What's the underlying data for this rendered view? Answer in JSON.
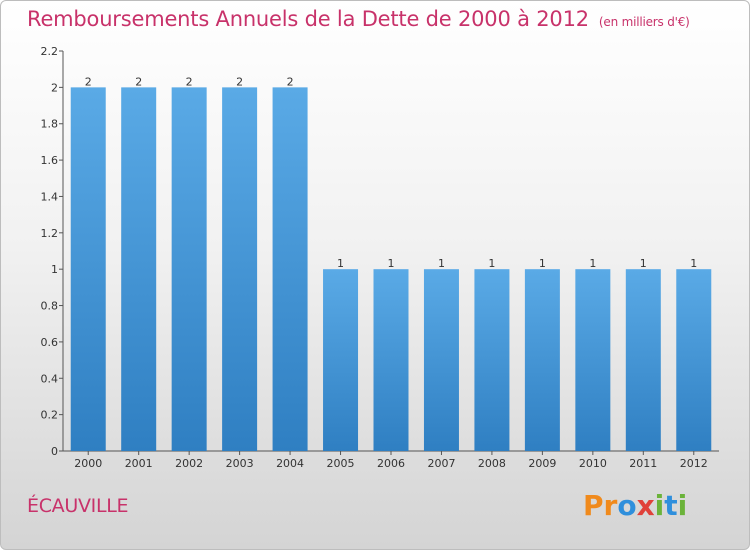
{
  "title": "Remboursements Annuels de la Dette de 2000 à 2012",
  "unit_note": "(en milliers d'€)",
  "commune": "ÉCAUVILLE",
  "logo": [
    "P",
    "r",
    "o",
    "x",
    "i",
    "t",
    "i"
  ],
  "colors": {
    "title": "#c8326a",
    "bar_top": "#5aaae6",
    "bar_bottom": "#2f7fc2",
    "logo": [
      "#f08a1c",
      "#f08a1c",
      "#2f8fdc",
      "#e0413a",
      "#6bb33a",
      "#2f8fdc",
      "#6bb33a"
    ]
  },
  "chart_data": {
    "type": "bar",
    "title": "Remboursements Annuels de la Dette de 2000 à 2012",
    "xlabel": "",
    "ylabel": "",
    "categories": [
      "2000",
      "2001",
      "2002",
      "2003",
      "2004",
      "2005",
      "2006",
      "2007",
      "2008",
      "2009",
      "2010",
      "2011",
      "2012"
    ],
    "values": [
      2,
      2,
      2,
      2,
      2,
      1,
      1,
      1,
      1,
      1,
      1,
      1,
      1
    ],
    "ylim": [
      0,
      2.2
    ],
    "yticks": [
      "0",
      "0.2",
      "0.4",
      "0.6",
      "0.8",
      "1",
      "1.2",
      "1.4",
      "1.6",
      "1.8",
      "2",
      "2.2"
    ],
    "grid": false,
    "legend": "none"
  }
}
